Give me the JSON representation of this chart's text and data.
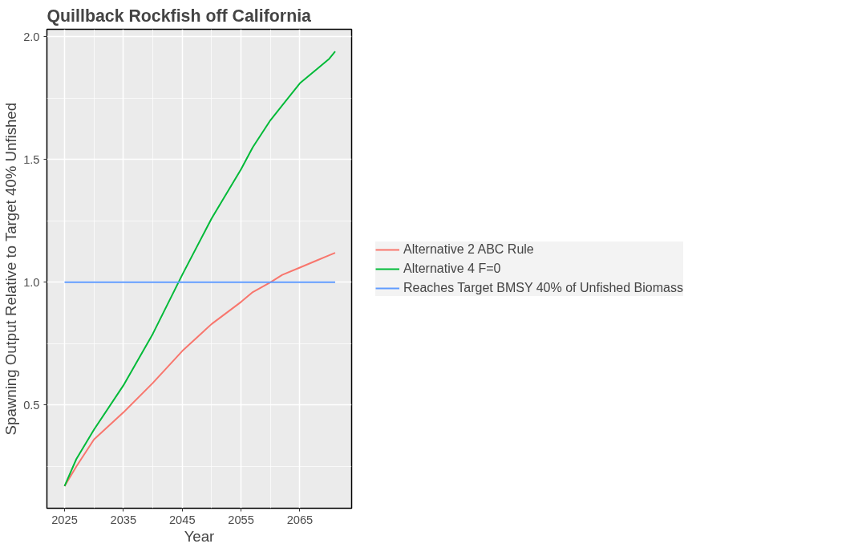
{
  "chart_data": {
    "type": "line",
    "title": "Quillback Rockfish off California",
    "xlabel": "Year",
    "ylabel": "Spawning Output Relative to Target 40% Unfished",
    "x": [
      2025,
      2027,
      2030,
      2035,
      2040,
      2045,
      2050,
      2055,
      2057,
      2060,
      2062,
      2065,
      2068,
      2070,
      2071
    ],
    "series": [
      {
        "name": "Alternative 2 ABC Rule",
        "color": "#f8766d",
        "values": [
          0.17,
          0.25,
          0.36,
          0.47,
          0.59,
          0.72,
          0.83,
          0.92,
          0.96,
          1.0,
          1.03,
          1.06,
          1.09,
          1.11,
          1.12
        ]
      },
      {
        "name": "Alternative 4 F=0",
        "color": "#00ba38",
        "values": [
          0.17,
          0.28,
          0.4,
          0.58,
          0.79,
          1.03,
          1.26,
          1.46,
          1.55,
          1.66,
          1.72,
          1.81,
          1.87,
          1.91,
          1.94
        ]
      },
      {
        "name": "Reaches Target BMSY 40% of Unfished Biomass",
        "color": "#619cff",
        "values": [
          1.0,
          1.0,
          1.0,
          1.0,
          1.0,
          1.0,
          1.0,
          1.0,
          1.0,
          1.0,
          1.0,
          1.0,
          1.0,
          1.0,
          1.0
        ]
      }
    ],
    "xlim": [
      2022,
      2073.8
    ],
    "xticks": [
      2025,
      2035,
      2045,
      2055,
      2065
    ],
    "ylim": [
      0.08,
      2.03
    ],
    "yticks": [
      {
        "value": 0.5,
        "label": "0.5"
      },
      {
        "value": 1.0,
        "label": "1.0"
      },
      {
        "value": 1.5,
        "label": "1.5"
      },
      {
        "value": 2.0,
        "label": "2.0"
      }
    ],
    "grid": true,
    "legend": "right",
    "line_style": "solid",
    "marker": "none"
  }
}
